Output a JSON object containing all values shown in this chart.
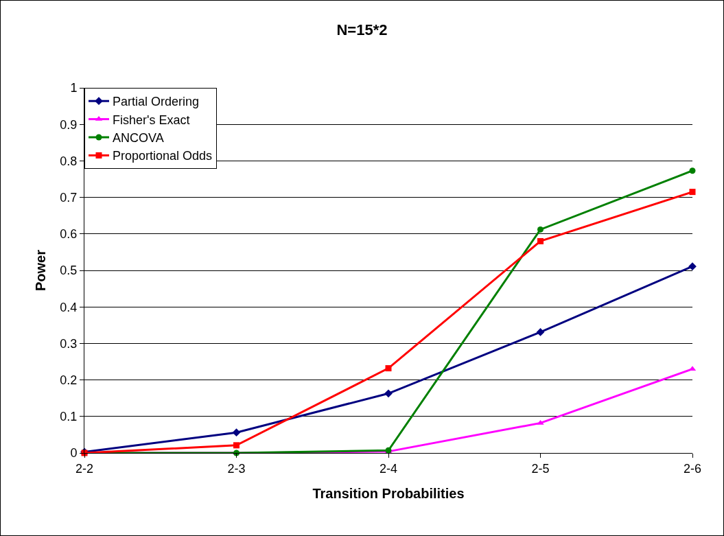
{
  "chart_data": {
    "type": "line",
    "title": "N=15*2",
    "xlabel": "Transition Probabilities",
    "ylabel": "Power",
    "categories": [
      "2-2",
      "2-3",
      "2-4",
      "2-5",
      "2-6"
    ],
    "series": [
      {
        "name": "Partial Ordering",
        "color": "#000080",
        "marker": "diamond",
        "values": [
          0.003,
          0.056,
          0.163,
          0.331,
          0.511
        ]
      },
      {
        "name": "Fisher's Exact",
        "color": "#ff00ff",
        "marker": "triangle",
        "values": [
          0,
          0,
          0.004,
          0.082,
          0.23
        ]
      },
      {
        "name": "ANCOVA",
        "color": "#008000",
        "marker": "circle",
        "values": [
          0,
          0,
          0.007,
          0.612,
          0.773
        ]
      },
      {
        "name": "Proportional Odds",
        "color": "#ff0000",
        "marker": "square",
        "values": [
          0,
          0.021,
          0.232,
          0.58,
          0.715
        ]
      }
    ],
    "ylim": [
      0,
      1
    ],
    "yticks": [
      0,
      0.1,
      0.2,
      0.3,
      0.4,
      0.5,
      0.6,
      0.7,
      0.8,
      0.9,
      1
    ],
    "grid": "y",
    "legend": "top left",
    "line_style": "solid"
  }
}
